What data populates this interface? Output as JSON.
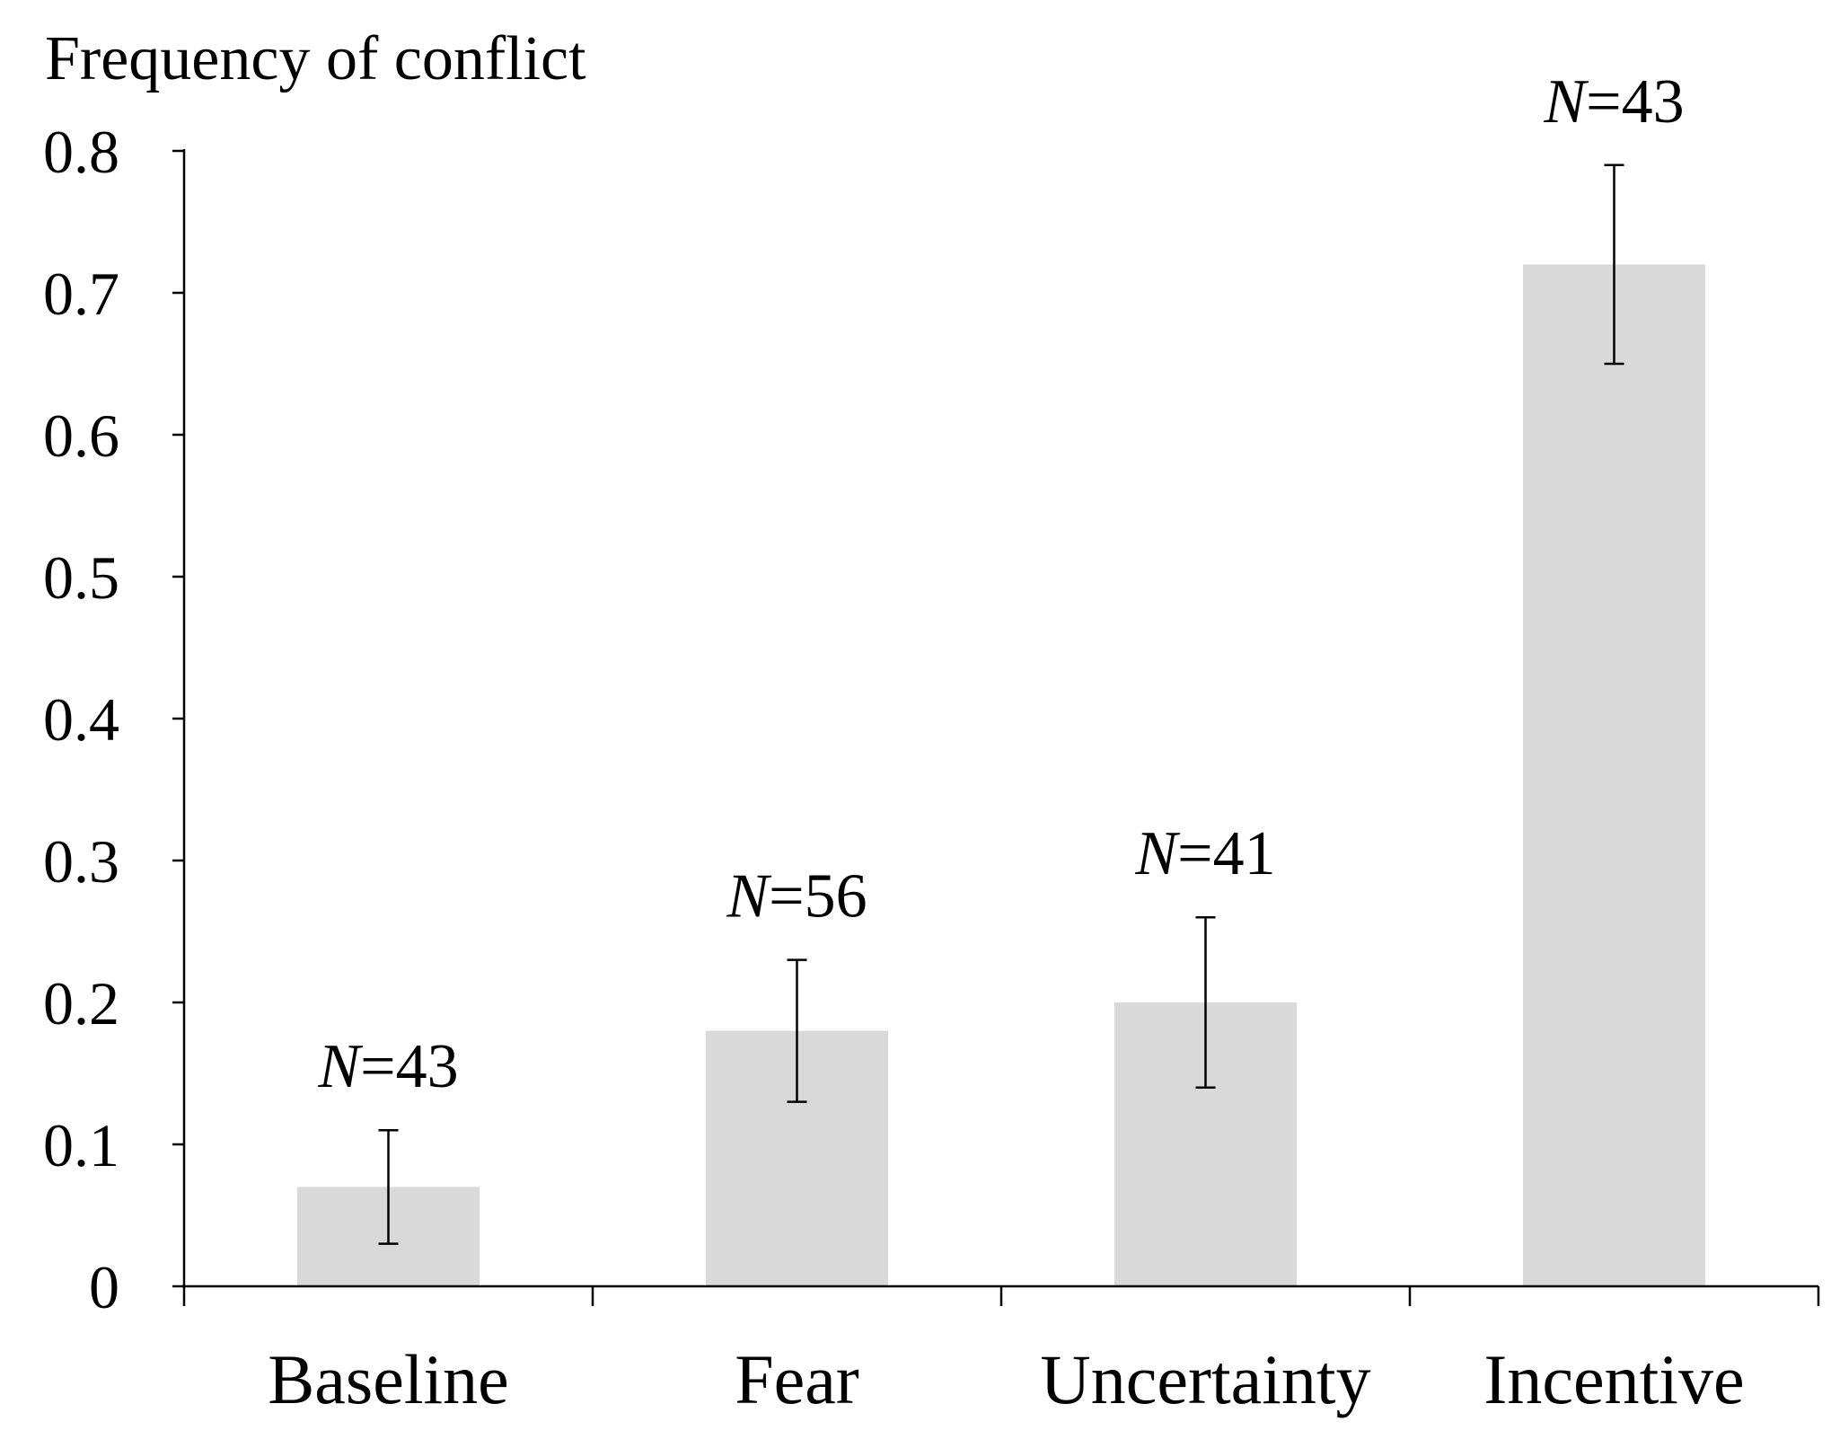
{
  "chart_data": {
    "type": "bar",
    "title": "",
    "xlabel": "",
    "ylabel": "Frequency of conflict",
    "categories": [
      "Baseline",
      "Fear",
      "Uncertainty",
      "Incentive"
    ],
    "values": [
      0.07,
      0.18,
      0.2,
      0.72
    ],
    "error_low": [
      0.03,
      0.13,
      0.14,
      0.65
    ],
    "error_high": [
      0.11,
      0.23,
      0.26,
      0.79
    ],
    "annotations": [
      {
        "prefix": "N",
        "suffix": "=43"
      },
      {
        "prefix": "N",
        "suffix": "=56"
      },
      {
        "prefix": "N",
        "suffix": "=41"
      },
      {
        "prefix": "N",
        "suffix": "=43"
      }
    ],
    "ylim": [
      0,
      0.8
    ],
    "yticks": [
      0,
      0.1,
      0.2,
      0.3,
      0.4,
      0.5,
      0.6,
      0.7,
      0.8
    ],
    "ytick_labels": [
      "0",
      "0.1",
      "0.2",
      "0.3",
      "0.4",
      "0.5",
      "0.6",
      "0.7",
      "0.8"
    ],
    "bar_color": "#d9d9d9",
    "axis_color": "#000000",
    "grid": false,
    "legend": "none"
  }
}
